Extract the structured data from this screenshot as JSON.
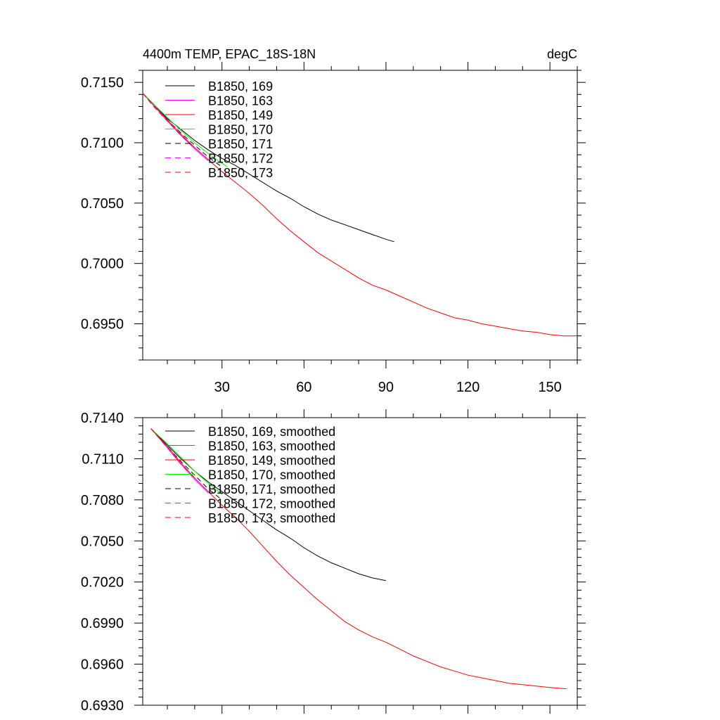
{
  "chart_data": [
    {
      "type": "line",
      "title": "4400m TEMP, EPAC_18S-18N",
      "units": "degC",
      "xlim": [
        1,
        160
      ],
      "ylim": [
        0.692,
        0.716
      ],
      "xticks": [
        30,
        60,
        90,
        120,
        150
      ],
      "xtick_labels": [
        "30",
        "60",
        "90",
        "120",
        "150"
      ],
      "yticks": [
        0.695,
        0.7,
        0.705,
        0.71,
        0.715
      ],
      "ytick_labels": [
        "0.6950",
        "0.7000",
        "0.7050",
        "0.7100",
        "0.7150"
      ],
      "grid": false,
      "legend_position": "top-left",
      "series": [
        {
          "name": "B1850, 169",
          "color": "#000000",
          "dash": "solid",
          "x": [
            1,
            5,
            10,
            15,
            20,
            25,
            30,
            35,
            40,
            45,
            50,
            55,
            60,
            65,
            70,
            75,
            80,
            85,
            90,
            93
          ],
          "y": [
            0.7141,
            0.7132,
            0.712,
            0.7111,
            0.7102,
            0.7094,
            0.7087,
            0.7081,
            0.7074,
            0.7067,
            0.706,
            0.7054,
            0.7047,
            0.7041,
            0.7036,
            0.7032,
            0.7028,
            0.7024,
            0.702,
            0.7018
          ]
        },
        {
          "name": "B1850, 163",
          "color": "#ff00ff",
          "dash": "solid",
          "x": [
            1,
            5,
            10,
            15,
            20,
            25
          ],
          "y": [
            0.7141,
            0.7131,
            0.7118,
            0.7106,
            0.7095,
            0.7085
          ]
        },
        {
          "name": "B1850, 149",
          "color": "#ff0000",
          "dash": "solid",
          "x": [
            1,
            5,
            10,
            15,
            20,
            25,
            30,
            35,
            40,
            45,
            50,
            55,
            60,
            65,
            70,
            75,
            80,
            85,
            90,
            95,
            100,
            105,
            110,
            115,
            120,
            125,
            130,
            135,
            140,
            145,
            150,
            155,
            160
          ],
          "y": [
            0.7141,
            0.7131,
            0.7119,
            0.7107,
            0.7096,
            0.7086,
            0.7076,
            0.7067,
            0.7058,
            0.7048,
            0.7037,
            0.7027,
            0.7018,
            0.7009,
            0.7002,
            0.6995,
            0.6988,
            0.6982,
            0.6978,
            0.6973,
            0.6968,
            0.6963,
            0.6959,
            0.6955,
            0.6953,
            0.695,
            0.6948,
            0.6946,
            0.6944,
            0.6943,
            0.6941,
            0.694,
            0.694
          ]
        },
        {
          "name": "B1850, 170",
          "color": "#00ff00",
          "dash": "solid",
          "x": [
            1,
            5,
            10,
            15,
            20,
            25,
            30,
            32
          ],
          "y": [
            0.7141,
            0.7132,
            0.7121,
            0.711,
            0.71,
            0.7091,
            0.7083,
            0.708
          ]
        },
        {
          "name": "B1850, 171",
          "color": "#000000",
          "dash": "dashed",
          "x": [
            1,
            5,
            10,
            15,
            20,
            25,
            30
          ],
          "y": [
            0.7141,
            0.7131,
            0.7119,
            0.7108,
            0.7098,
            0.7088,
            0.708
          ]
        },
        {
          "name": "B1850, 172",
          "color": "#ff00ff",
          "dash": "dashed",
          "x": [
            1,
            5,
            10,
            15,
            20,
            25
          ],
          "y": [
            0.7141,
            0.7131,
            0.7119,
            0.7107,
            0.7096,
            0.7086
          ]
        },
        {
          "name": "B1850, 173",
          "color": "#ff0000",
          "dash": "dashed",
          "x": [
            1,
            5,
            10,
            15,
            20
          ],
          "y": [
            0.7141,
            0.713,
            0.7118,
            0.7106,
            0.7096
          ]
        }
      ]
    },
    {
      "type": "line",
      "xlim": [
        1,
        160
      ],
      "ylim": [
        0.693,
        0.714
      ],
      "xticks": [
        30,
        60,
        90,
        120,
        150
      ],
      "yticks": [
        0.693,
        0.696,
        0.699,
        0.702,
        0.705,
        0.708,
        0.711,
        0.714
      ],
      "ytick_labels": [
        "0.6930",
        "0.6960",
        "0.6990",
        "0.7020",
        "0.7050",
        "0.7080",
        "0.7110",
        "0.7140"
      ],
      "grid": false,
      "legend_position": "top-left",
      "series": [
        {
          "name": "B1850, 169, smoothed",
          "color": "#000000",
          "dash": "solid",
          "x": [
            4,
            10,
            15,
            20,
            25,
            30,
            35,
            40,
            45,
            50,
            55,
            60,
            65,
            70,
            75,
            80,
            85,
            90
          ],
          "y": [
            0.7132,
            0.712,
            0.711,
            0.7101,
            0.7093,
            0.7086,
            0.7079,
            0.7072,
            0.7065,
            0.7058,
            0.7052,
            0.7045,
            0.7039,
            0.7034,
            0.703,
            0.7026,
            0.7023,
            0.7021
          ]
        },
        {
          "name": "B1850, 163, smoothed",
          "color": "#ff00ff",
          "dash": "solid",
          "x": [
            4,
            10,
            15,
            20,
            25
          ],
          "y": [
            0.7132,
            0.7118,
            0.7106,
            0.7095,
            0.7085
          ]
        },
        {
          "name": "B1850, 149, smoothed",
          "color": "#ff0000",
          "dash": "solid",
          "x": [
            4,
            10,
            15,
            20,
            25,
            30,
            35,
            40,
            45,
            50,
            55,
            60,
            65,
            70,
            75,
            80,
            85,
            90,
            95,
            100,
            105,
            110,
            115,
            120,
            125,
            130,
            135,
            140,
            145,
            150,
            156
          ],
          "y": [
            0.7132,
            0.7119,
            0.7107,
            0.7096,
            0.7086,
            0.7076,
            0.7067,
            0.7057,
            0.7046,
            0.7035,
            0.7025,
            0.7016,
            0.7007,
            0.6999,
            0.6991,
            0.6985,
            0.698,
            0.6976,
            0.6971,
            0.6966,
            0.6962,
            0.6958,
            0.6955,
            0.6952,
            0.695,
            0.6948,
            0.6946,
            0.6945,
            0.6944,
            0.6943,
            0.6942
          ]
        },
        {
          "name": "B1850, 170, smoothed",
          "color": "#00ff00",
          "dash": "solid",
          "x": [
            4,
            10,
            15,
            20,
            25,
            30
          ],
          "y": [
            0.7132,
            0.7121,
            0.7111,
            0.7101,
            0.7092,
            0.7084
          ]
        },
        {
          "name": "B1850, 171, smoothed",
          "color": "#000000",
          "dash": "dashed",
          "x": [
            4,
            10,
            15,
            20,
            25,
            30
          ],
          "y": [
            0.7132,
            0.7119,
            0.7108,
            0.7098,
            0.7088,
            0.708
          ]
        },
        {
          "name": "B1850, 172, smoothed",
          "color": "#ff00ff",
          "dash": "dashed",
          "x": [
            4,
            10,
            15,
            20,
            25
          ],
          "y": [
            0.7132,
            0.7119,
            0.7107,
            0.7096,
            0.7086
          ]
        },
        {
          "name": "B1850, 173, smoothed",
          "color": "#ff0000",
          "dash": "dashed",
          "x": [
            4,
            10,
            15,
            20
          ],
          "y": [
            0.7132,
            0.7118,
            0.7106,
            0.7096
          ]
        }
      ]
    }
  ]
}
